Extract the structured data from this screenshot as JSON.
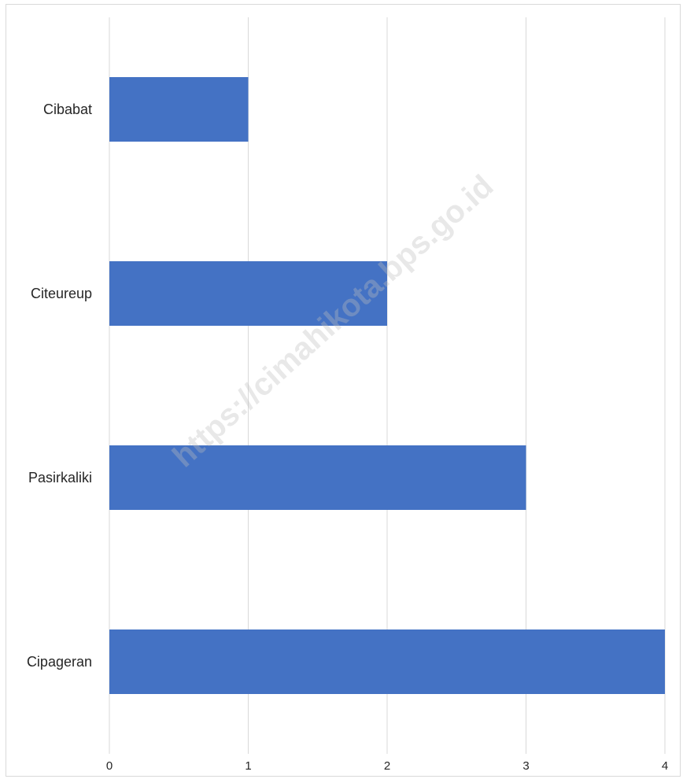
{
  "chart_data": {
    "type": "bar",
    "orientation": "horizontal",
    "categories": [
      "Cibabat",
      "Citeureup",
      "Pasirkaliki",
      "Cipageran"
    ],
    "values": [
      1,
      2,
      3,
      4
    ],
    "title": "",
    "xlabel": "",
    "ylabel": "",
    "xlim": [
      0,
      4
    ],
    "x_ticks": [
      "0",
      "1",
      "2",
      "3",
      "4"
    ],
    "grid": true,
    "legend": "none",
    "bar_color": "#4472C4"
  },
  "watermark": "https://cimahikota.bps.go.id"
}
